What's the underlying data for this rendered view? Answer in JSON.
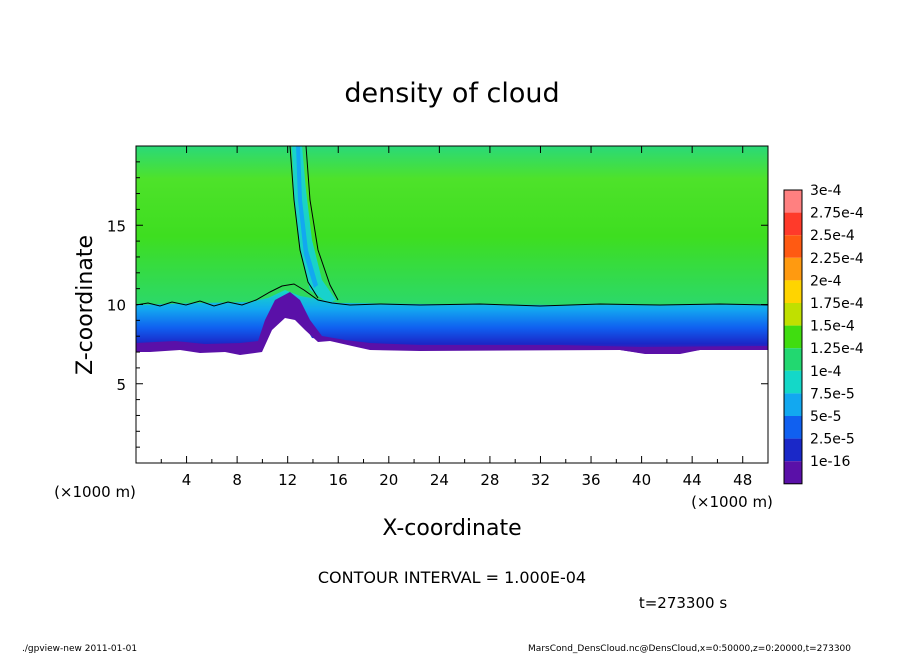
{
  "chart_data": {
    "type": "heatmap",
    "title": "density of cloud",
    "xlabel": "X-coordinate",
    "ylabel": "Z-coordinate",
    "x_unit_label": "(×1000 m)",
    "z_unit_label": "(×1000 m)",
    "xlim": [
      0,
      50
    ],
    "ylim": [
      0,
      20
    ],
    "x_ticks": [
      4,
      8,
      12,
      16,
      20,
      24,
      28,
      32,
      36,
      40,
      44,
      48
    ],
    "y_ticks": [
      5,
      10,
      15
    ],
    "colorbar": {
      "labels": [
        "3e-4",
        "2.75e-4",
        "2.5e-4",
        "2.25e-4",
        "2e-4",
        "1.75e-4",
        "1.5e-4",
        "1.25e-4",
        "1e-4",
        "7.5e-5",
        "5e-5",
        "2.5e-5",
        "1e-16"
      ],
      "colors": [
        "#ff8080",
        "#ff3a2a",
        "#ff5a12",
        "#ff9a10",
        "#ffd400",
        "#c0e000",
        "#40dd10",
        "#22d870",
        "#14d8c8",
        "#12a8f0",
        "#1060f0",
        "#1a28c8",
        "#5a10a8"
      ]
    },
    "contour_interval": "CONTOUR INTERVAL = 1.000E-04",
    "time_label": "t=273300 s",
    "field": {
      "cloud_base_km": 7.4,
      "contour_level_km": 10.0,
      "main_value": "1.25e-4 to 1.5e-4",
      "plume_center_x_km": 12.5,
      "plume_top_km": 20
    },
    "footer_left": "./gpview-new  2011-01-01",
    "footer_right": "MarsCond_DensCloud.nc@DensCloud,x=0:50000,z=0:20000,t=273300"
  }
}
